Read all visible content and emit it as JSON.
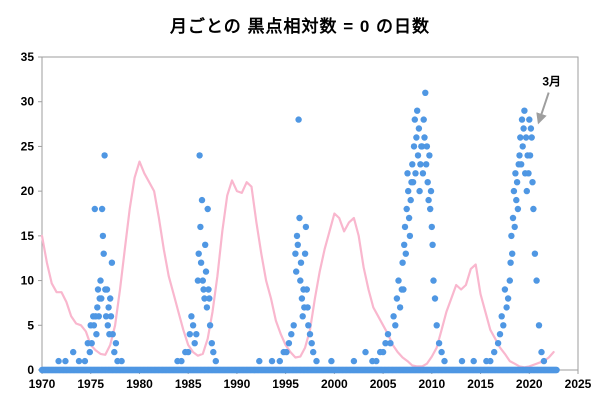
{
  "chart_data": {
    "type": "scatter",
    "title": "月ごとの 黒点相対数 = 0 の日数",
    "xlabel": "",
    "ylabel": "",
    "xlim": [
      1970,
      2025
    ],
    "ylim": [
      0,
      35
    ],
    "x_ticks": [
      1970,
      1975,
      1980,
      1985,
      1990,
      1995,
      2000,
      2005,
      2010,
      2015,
      2020,
      2025
    ],
    "y_ticks": [
      0,
      5,
      10,
      15,
      20,
      25,
      30,
      35
    ],
    "grid": false,
    "legend": "none",
    "colors": {
      "dot": "#4f97e3",
      "line": "#f9b7ce",
      "axis": "#9e9e9e",
      "text": "#000000",
      "annotation": "#9e9e9e"
    },
    "annotation": {
      "label": "3月",
      "label_pos": [
        2022.3,
        31.8
      ],
      "target": [
        2020.35,
        26.8
      ]
    },
    "zero_baseline": {
      "y": 0,
      "x_start": 1970.0,
      "x_end": 2022.8,
      "step": 0.08
    },
    "series": [
      {
        "name": "days-with-zero-sunspots-per-month",
        "type": "scatter",
        "points": [
          [
            1971.7,
            1
          ],
          [
            1972.4,
            1
          ],
          [
            1973.2,
            2
          ],
          [
            1973.8,
            1
          ],
          [
            1974.4,
            1
          ],
          [
            1974.7,
            3
          ],
          [
            1974.9,
            2
          ],
          [
            1975.0,
            5
          ],
          [
            1975.1,
            3
          ],
          [
            1975.25,
            6
          ],
          [
            1975.33,
            5
          ],
          [
            1975.42,
            18
          ],
          [
            1975.5,
            6
          ],
          [
            1975.58,
            4
          ],
          [
            1975.67,
            7
          ],
          [
            1975.75,
            9
          ],
          [
            1975.83,
            6
          ],
          [
            1975.92,
            8
          ],
          [
            1976.0,
            10
          ],
          [
            1976.08,
            8
          ],
          [
            1976.17,
            18
          ],
          [
            1976.25,
            15
          ],
          [
            1976.33,
            13
          ],
          [
            1976.42,
            24
          ],
          [
            1976.5,
            9
          ],
          [
            1976.58,
            6
          ],
          [
            1976.67,
            9
          ],
          [
            1976.75,
            5
          ],
          [
            1976.83,
            7
          ],
          [
            1976.92,
            4
          ],
          [
            1977.0,
            8
          ],
          [
            1977.08,
            6
          ],
          [
            1977.17,
            12
          ],
          [
            1977.25,
            4
          ],
          [
            1977.42,
            2
          ],
          [
            1977.58,
            3
          ],
          [
            1977.75,
            1
          ],
          [
            1978.17,
            1
          ],
          [
            1983.9,
            1
          ],
          [
            1984.3,
            1
          ],
          [
            1984.7,
            2
          ],
          [
            1985.0,
            2
          ],
          [
            1985.17,
            4
          ],
          [
            1985.33,
            6
          ],
          [
            1985.5,
            5
          ],
          [
            1985.67,
            3
          ],
          [
            1985.83,
            4
          ],
          [
            1986.0,
            10
          ],
          [
            1986.08,
            13
          ],
          [
            1986.17,
            24
          ],
          [
            1986.25,
            16
          ],
          [
            1986.33,
            12
          ],
          [
            1986.42,
            19
          ],
          [
            1986.5,
            10
          ],
          [
            1986.58,
            9
          ],
          [
            1986.67,
            8
          ],
          [
            1986.75,
            14
          ],
          [
            1986.83,
            11
          ],
          [
            1986.92,
            7
          ],
          [
            1987.0,
            18
          ],
          [
            1987.08,
            9
          ],
          [
            1987.17,
            8
          ],
          [
            1987.25,
            5
          ],
          [
            1987.42,
            3
          ],
          [
            1987.58,
            2
          ],
          [
            1987.83,
            1
          ],
          [
            1992.3,
            1
          ],
          [
            1993.6,
            1
          ],
          [
            1994.4,
            1
          ],
          [
            1994.8,
            2
          ],
          [
            1995.08,
            2
          ],
          [
            1995.33,
            3
          ],
          [
            1995.58,
            4
          ],
          [
            1995.83,
            5
          ],
          [
            1996.0,
            13
          ],
          [
            1996.08,
            11
          ],
          [
            1996.17,
            15
          ],
          [
            1996.25,
            14
          ],
          [
            1996.33,
            28
          ],
          [
            1996.42,
            17
          ],
          [
            1996.5,
            10
          ],
          [
            1996.58,
            12
          ],
          [
            1996.67,
            8
          ],
          [
            1996.75,
            6
          ],
          [
            1996.83,
            9
          ],
          [
            1996.92,
            7
          ],
          [
            1997.0,
            13
          ],
          [
            1997.08,
            16
          ],
          [
            1997.17,
            9
          ],
          [
            1997.25,
            7
          ],
          [
            1997.33,
            5
          ],
          [
            1997.5,
            4
          ],
          [
            1997.67,
            3
          ],
          [
            1997.83,
            2
          ],
          [
            1998.17,
            1
          ],
          [
            1999.7,
            1
          ],
          [
            2002.0,
            1
          ],
          [
            2003.2,
            2
          ],
          [
            2003.9,
            1
          ],
          [
            2004.3,
            1
          ],
          [
            2004.7,
            2
          ],
          [
            2005.0,
            2
          ],
          [
            2005.25,
            3
          ],
          [
            2005.5,
            4
          ],
          [
            2005.75,
            3
          ],
          [
            2006.08,
            6
          ],
          [
            2006.25,
            5
          ],
          [
            2006.42,
            8
          ],
          [
            2006.58,
            10
          ],
          [
            2006.75,
            7
          ],
          [
            2006.92,
            9
          ],
          [
            2007.0,
            12
          ],
          [
            2007.08,
            9
          ],
          [
            2007.17,
            14
          ],
          [
            2007.25,
            16
          ],
          [
            2007.33,
            13
          ],
          [
            2007.42,
            18
          ],
          [
            2007.5,
            22
          ],
          [
            2007.58,
            20
          ],
          [
            2007.67,
            17
          ],
          [
            2007.75,
            15
          ],
          [
            2007.83,
            19
          ],
          [
            2007.92,
            21
          ],
          [
            2008.0,
            23
          ],
          [
            2008.08,
            21
          ],
          [
            2008.17,
            25
          ],
          [
            2008.25,
            28
          ],
          [
            2008.33,
            22
          ],
          [
            2008.42,
            26
          ],
          [
            2008.5,
            29
          ],
          [
            2008.58,
            24
          ],
          [
            2008.67,
            27
          ],
          [
            2008.75,
            20
          ],
          [
            2008.83,
            23
          ],
          [
            2008.92,
            25
          ],
          [
            2009.0,
            25
          ],
          [
            2009.08,
            22
          ],
          [
            2009.17,
            28
          ],
          [
            2009.25,
            26
          ],
          [
            2009.33,
            31
          ],
          [
            2009.42,
            23
          ],
          [
            2009.5,
            25
          ],
          [
            2009.58,
            21
          ],
          [
            2009.67,
            19
          ],
          [
            2009.75,
            24
          ],
          [
            2009.83,
            18
          ],
          [
            2009.92,
            20
          ],
          [
            2010.0,
            16
          ],
          [
            2010.08,
            14
          ],
          [
            2010.17,
            10
          ],
          [
            2010.33,
            8
          ],
          [
            2010.5,
            5
          ],
          [
            2010.75,
            3
          ],
          [
            2011.0,
            2
          ],
          [
            2011.3,
            1
          ],
          [
            2013.1,
            1
          ],
          [
            2014.3,
            1
          ],
          [
            2015.6,
            1
          ],
          [
            2016.0,
            1
          ],
          [
            2016.4,
            2
          ],
          [
            2016.8,
            3
          ],
          [
            2017.0,
            4
          ],
          [
            2017.17,
            6
          ],
          [
            2017.33,
            5
          ],
          [
            2017.5,
            9
          ],
          [
            2017.67,
            7
          ],
          [
            2017.83,
            8
          ],
          [
            2018.0,
            10
          ],
          [
            2018.08,
            12
          ],
          [
            2018.17,
            15
          ],
          [
            2018.25,
            13
          ],
          [
            2018.33,
            17
          ],
          [
            2018.42,
            20
          ],
          [
            2018.5,
            16
          ],
          [
            2018.58,
            22
          ],
          [
            2018.67,
            19
          ],
          [
            2018.75,
            21
          ],
          [
            2018.83,
            18
          ],
          [
            2018.92,
            23
          ],
          [
            2019.0,
            24
          ],
          [
            2019.08,
            26
          ],
          [
            2019.17,
            23
          ],
          [
            2019.25,
            28
          ],
          [
            2019.33,
            25
          ],
          [
            2019.42,
            27
          ],
          [
            2019.5,
            29
          ],
          [
            2019.58,
            22
          ],
          [
            2019.67,
            26
          ],
          [
            2019.75,
            20
          ],
          [
            2019.83,
            24
          ],
          [
            2019.92,
            22
          ],
          [
            2020.0,
            28
          ],
          [
            2020.08,
            24
          ],
          [
            2020.17,
            27
          ],
          [
            2020.25,
            26
          ],
          [
            2020.33,
            21
          ],
          [
            2020.42,
            18
          ],
          [
            2020.58,
            13
          ],
          [
            2020.75,
            10
          ],
          [
            2021.0,
            5
          ],
          [
            2021.25,
            2
          ],
          [
            2021.5,
            1
          ]
        ]
      },
      {
        "name": "smoothed-sunspot-number-curve",
        "type": "line",
        "points": [
          [
            1970,
            15
          ],
          [
            1970.5,
            12
          ],
          [
            1971,
            9.7
          ],
          [
            1971.5,
            8.7
          ],
          [
            1972,
            8.7
          ],
          [
            1972.5,
            7.6
          ],
          [
            1973,
            6
          ],
          [
            1973.5,
            5.2
          ],
          [
            1974,
            5
          ],
          [
            1974.5,
            4.3
          ],
          [
            1975,
            2.8
          ],
          [
            1975.5,
            2.2
          ],
          [
            1976,
            1.8
          ],
          [
            1976.5,
            1.7
          ],
          [
            1977,
            2.8
          ],
          [
            1977.5,
            5
          ],
          [
            1978,
            9
          ],
          [
            1978.5,
            13.5
          ],
          [
            1979,
            18
          ],
          [
            1979.5,
            21.5
          ],
          [
            1980,
            23.3
          ],
          [
            1980.5,
            22
          ],
          [
            1981,
            21
          ],
          [
            1981.5,
            20
          ],
          [
            1982,
            17
          ],
          [
            1982.5,
            13.5
          ],
          [
            1983,
            10.5
          ],
          [
            1983.5,
            8.5
          ],
          [
            1984,
            6.5
          ],
          [
            1984.5,
            4.5
          ],
          [
            1985,
            2.8
          ],
          [
            1985.5,
            2
          ],
          [
            1986,
            1.6
          ],
          [
            1986.5,
            1.8
          ],
          [
            1987,
            3.5
          ],
          [
            1987.5,
            6.5
          ],
          [
            1988,
            10.5
          ],
          [
            1988.5,
            15.5
          ],
          [
            1989,
            19.5
          ],
          [
            1989.5,
            21.2
          ],
          [
            1990,
            20
          ],
          [
            1990.5,
            19.8
          ],
          [
            1991,
            21
          ],
          [
            1991.5,
            20.5
          ],
          [
            1992,
            16.5
          ],
          [
            1992.5,
            13
          ],
          [
            1993,
            10
          ],
          [
            1993.5,
            8
          ],
          [
            1994,
            5.5
          ],
          [
            1994.5,
            4
          ],
          [
            1995,
            2.8
          ],
          [
            1995.5,
            2
          ],
          [
            1996,
            1.4
          ],
          [
            1996.5,
            1.5
          ],
          [
            1997,
            2.5
          ],
          [
            1997.5,
            4.5
          ],
          [
            1998,
            8
          ],
          [
            1998.5,
            11
          ],
          [
            1999,
            13.5
          ],
          [
            1999.5,
            15.5
          ],
          [
            2000,
            17.5
          ],
          [
            2000.5,
            17
          ],
          [
            2001,
            15.5
          ],
          [
            2001.5,
            16.5
          ],
          [
            2002,
            17
          ],
          [
            2002.5,
            15
          ],
          [
            2003,
            11.5
          ],
          [
            2003.5,
            9
          ],
          [
            2004,
            7
          ],
          [
            2004.5,
            6
          ],
          [
            2005,
            5
          ],
          [
            2005.5,
            4
          ],
          [
            2006,
            2.8
          ],
          [
            2006.5,
            2
          ],
          [
            2007,
            1.4
          ],
          [
            2007.5,
            1
          ],
          [
            2008,
            0.5
          ],
          [
            2008.5,
            0.4
          ],
          [
            2009,
            0.4
          ],
          [
            2009.5,
            0.7
          ],
          [
            2010,
            1.5
          ],
          [
            2010.5,
            2.5
          ],
          [
            2011,
            4.5
          ],
          [
            2011.5,
            6.5
          ],
          [
            2012,
            8
          ],
          [
            2012.5,
            9.5
          ],
          [
            2013,
            9
          ],
          [
            2013.5,
            9.5
          ],
          [
            2014,
            11.3
          ],
          [
            2014.5,
            11.8
          ],
          [
            2015,
            8.5
          ],
          [
            2015.5,
            6.5
          ],
          [
            2016,
            4.5
          ],
          [
            2016.5,
            3.5
          ],
          [
            2017,
            2.5
          ],
          [
            2017.5,
            1.8
          ],
          [
            2018,
            1
          ],
          [
            2018.5,
            0.7
          ],
          [
            2019,
            0.4
          ],
          [
            2019.5,
            0.3
          ],
          [
            2020,
            0.4
          ],
          [
            2020.5,
            0.6
          ],
          [
            2021,
            0.8
          ],
          [
            2021.5,
            1
          ],
          [
            2022,
            1.4
          ],
          [
            2022.5,
            2
          ]
        ]
      }
    ]
  }
}
